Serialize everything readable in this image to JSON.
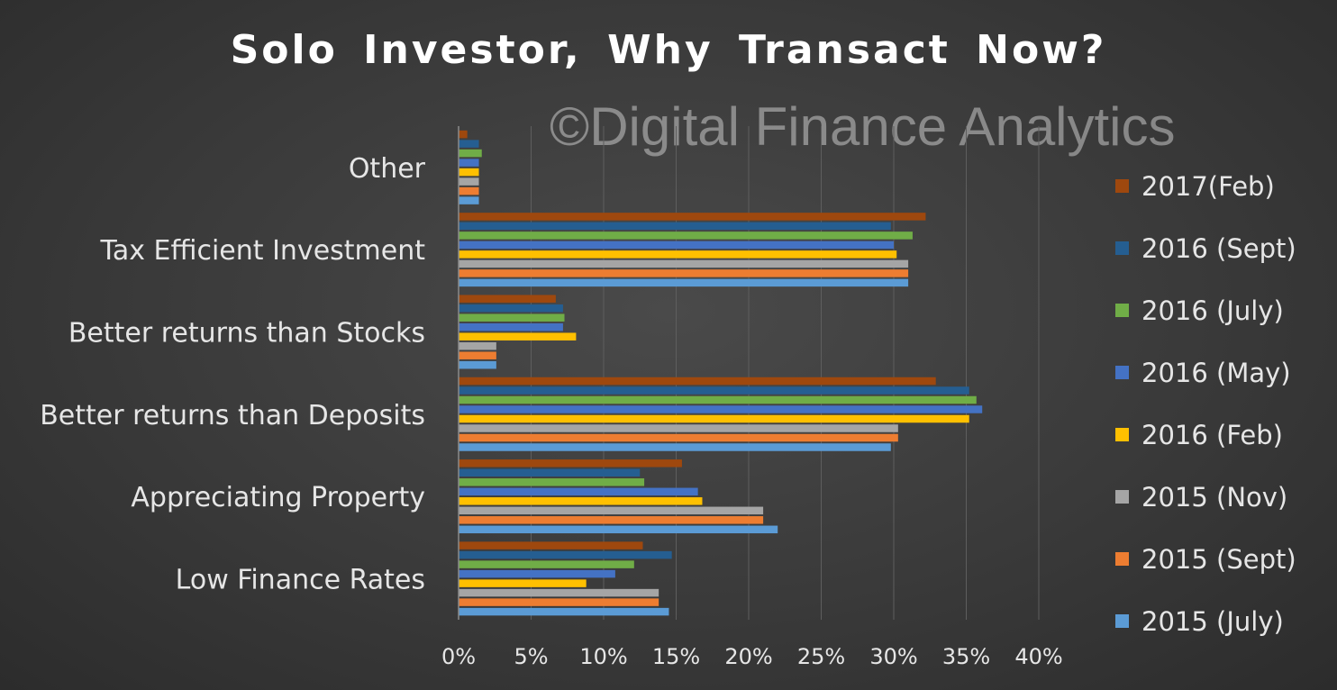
{
  "chart_data": {
    "type": "bar",
    "orientation": "horizontal",
    "title": "Solo Investor,  Why Transact  Now?",
    "watermark": "©Digital Finance Analytics",
    "categories": [
      "Low Finance Rates",
      "Appreciating Property",
      "Better returns than Deposits",
      "Better returns than Stocks",
      "Tax Efficient Investment",
      "Other"
    ],
    "x_ticks": [
      "0%",
      "5%",
      "10%",
      "15%",
      "20%",
      "25%",
      "30%",
      "35%",
      "40%"
    ],
    "xlim": [
      0,
      40
    ],
    "grid": true,
    "legend_position": "right",
    "series": [
      {
        "name": "2015 (July)",
        "color": "#5b9bd5",
        "values": [
          14.5,
          22,
          29.8,
          2.6,
          31,
          1.4
        ]
      },
      {
        "name": "2015 (Sept)",
        "color": "#ed7d31",
        "values": [
          13.8,
          21,
          30.3,
          2.6,
          31,
          1.4
        ]
      },
      {
        "name": "2015 (Nov)",
        "color": "#a5a5a5",
        "values": [
          13.8,
          21,
          30.3,
          2.6,
          31,
          1.4
        ]
      },
      {
        "name": "2016 (Feb)",
        "color": "#ffc000",
        "values": [
          8.8,
          16.8,
          35.2,
          8.1,
          30.2,
          1.4
        ]
      },
      {
        "name": "2016 (May)",
        "color": "#4472c4",
        "values": [
          10.8,
          16.5,
          36.1,
          7.2,
          30,
          1.4
        ]
      },
      {
        "name": "2016 (July)",
        "color": "#70ad47",
        "values": [
          12.1,
          12.8,
          35.7,
          7.3,
          31.3,
          1.6
        ]
      },
      {
        "name": "2016 (Sept)",
        "color": "#255e91",
        "values": [
          14.7,
          12.5,
          35.2,
          7.2,
          29.8,
          1.4
        ]
      },
      {
        "name": "2017(Feb)",
        "color": "#9e480e",
        "values": [
          12.7,
          15.4,
          32.9,
          6.7,
          32.2,
          0.6
        ]
      }
    ]
  }
}
